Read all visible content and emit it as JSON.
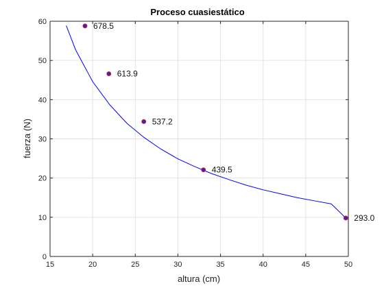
{
  "chart_data": {
    "type": "scatter",
    "title": "Proceso cuasiestático",
    "xlabel": "altura (cm)",
    "ylabel": "fuerza (N)",
    "xlim": [
      15,
      50
    ],
    "ylim": [
      0,
      60
    ],
    "xticks": [
      15,
      20,
      25,
      30,
      35,
      40,
      45,
      50
    ],
    "yticks": [
      0,
      10,
      20,
      30,
      40,
      50,
      60
    ],
    "grid": true,
    "series": [
      {
        "type": "scatter",
        "x": [
          19.1,
          21.9,
          26.0,
          33.0,
          49.7
        ],
        "y": [
          58.8,
          46.6,
          34.4,
          22.1,
          9.8
        ],
        "labels": [
          "678.5",
          "613.9",
          "537.2",
          "439.5",
          "293.0"
        ],
        "color": "#2b2bb0",
        "marker_edge": "#c0184a"
      },
      {
        "type": "line",
        "x": [
          16.9,
          18,
          20,
          22,
          24,
          26,
          28,
          30,
          32,
          34,
          36,
          38,
          40,
          42,
          44,
          46,
          48,
          49.7
        ],
        "y": [
          58.9,
          52.7,
          44.6,
          38.7,
          34.0,
          30.4,
          27.4,
          24.9,
          22.9,
          21.1,
          19.6,
          18.2,
          17.0,
          16.0,
          15.0,
          14.2,
          13.4,
          9.8
        ],
        "color": "#0000ff"
      }
    ]
  }
}
